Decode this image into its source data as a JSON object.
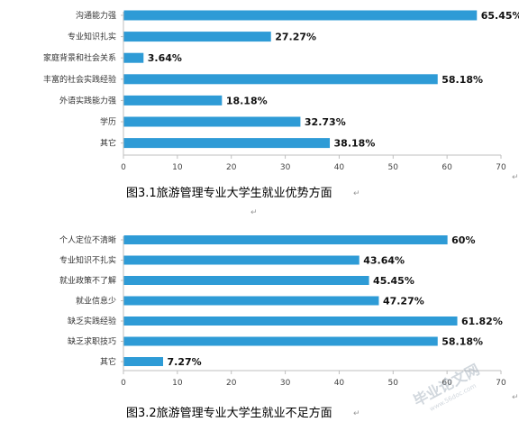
{
  "chart_data": [
    {
      "type": "bar",
      "orientation": "horizontal",
      "caption": "图3.1旅游管理专业大学生就业优势方面",
      "categories": [
        "沟通能力强",
        "专业知识扎实",
        "家庭背景和社会关系",
        "丰富的社会实践经验",
        "外语实践能力强",
        "学历",
        "其它"
      ],
      "values": [
        65.45,
        27.27,
        3.64,
        58.18,
        18.18,
        32.73,
        38.18
      ],
      "value_labels": [
        "65.45%",
        "27.27%",
        "3.64%",
        "58.18%",
        "18.18%",
        "32.73%",
        "38.18%"
      ],
      "xticks": [
        "0",
        "10",
        "20",
        "30",
        "40",
        "50",
        "60",
        "70"
      ],
      "xlim": [
        0,
        70
      ],
      "bar_color": "#2e9bd6",
      "grid": false
    },
    {
      "type": "bar",
      "orientation": "horizontal",
      "caption": "图3.2旅游管理专业大学生就业不足方面",
      "categories": [
        "个人定位不清晰",
        "专业知识不扎实",
        "就业政策不了解",
        "就业信息少",
        "缺乏实践经验",
        "缺乏求职技巧",
        "其它"
      ],
      "values": [
        60,
        43.64,
        45.45,
        47.27,
        61.82,
        58.18,
        7.27
      ],
      "value_labels": [
        "60%",
        "43.64%",
        "45.45%",
        "47.27%",
        "61.82%",
        "58.18%",
        "7.27%"
      ],
      "xticks": [
        "0",
        "10",
        "20",
        "30",
        "40",
        "50",
        "60",
        "70"
      ],
      "xlim": [
        0,
        70
      ],
      "bar_color": "#2e9bd6",
      "grid": false
    }
  ],
  "watermark": {
    "text": "毕业论文网",
    "url": "www.56doc.com"
  },
  "paragraph_mark": "↵"
}
